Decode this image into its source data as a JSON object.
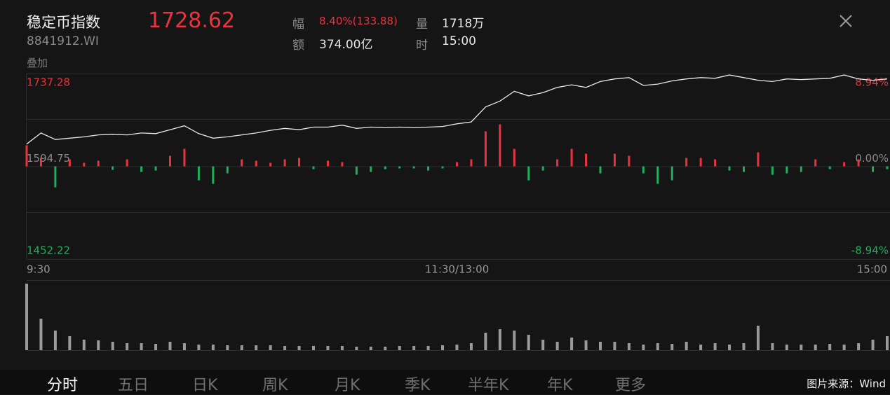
{
  "header": {
    "name": "稳定币指数",
    "code": "8841912.WI",
    "overlay": "叠加",
    "price": 1728.62,
    "stats": [
      {
        "label": "幅",
        "value": "8.40%(133.88)"
      },
      {
        "label": "量",
        "value": "1718万"
      },
      {
        "label": "额",
        "value": "374.00亿"
      },
      {
        "label": "时",
        "value": "15:00"
      }
    ]
  },
  "chart_data": {
    "type": "line",
    "categories": [
      "9:30",
      null,
      null,
      null,
      null,
      null,
      null,
      null,
      null,
      null,
      null,
      null,
      null,
      null,
      null,
      null,
      null,
      null,
      null,
      null,
      null,
      null,
      null,
      null,
      null,
      null,
      null,
      null,
      null,
      null,
      "11:30/13:00",
      null,
      null,
      null,
      null,
      null,
      null,
      null,
      null,
      null,
      null,
      null,
      null,
      null,
      null,
      null,
      null,
      null,
      null,
      null,
      null,
      null,
      null,
      null,
      null,
      null,
      null,
      null,
      null,
      null,
      "15:00"
    ],
    "series": [
      {
        "color": "#e8e8e8",
        "values": [
          1629,
          1646,
          1636,
          1638,
          1640,
          1643,
          1644,
          1643,
          1646,
          1645,
          1651,
          1657,
          1645,
          1638,
          1640,
          1643,
          1646,
          1650,
          1653,
          1651,
          1655,
          1655,
          1658,
          1653,
          1655,
          1654,
          1655,
          1654,
          1655,
          1656,
          1660,
          1663,
          1686,
          1695,
          1710,
          1703,
          1708,
          1716,
          1720,
          1716,
          1725,
          1729,
          1731,
          1719,
          1721,
          1726,
          1729,
          1731,
          1730,
          1735,
          1731,
          1727,
          1725,
          1729,
          1728,
          1729,
          1730,
          1735,
          1729,
          1727,
          1729
        ]
      }
    ],
    "ylim": [
      1452.22,
      1737.28
    ],
    "yticks": [
      1452.22,
      1594.75,
      1737.28
    ],
    "y2lim": [
      -8.94,
      8.94
    ],
    "y2ticks": [
      {
        "value": -8.94,
        "label": "-8.94%"
      },
      {
        "value": 0,
        "label": "0.00%"
      },
      {
        "value": 8.94,
        "label": "8.94%"
      }
    ],
    "up_color": "#e8343f",
    "down_color": "#1fae5c",
    "flat_color": "#8a8a8a",
    "flow": {
      "values": [
        30,
        12,
        -30,
        10,
        5,
        8,
        -5,
        10,
        -8,
        -6,
        15,
        25,
        -20,
        -25,
        -10,
        10,
        8,
        5,
        10,
        12,
        -4,
        8,
        6,
        -12,
        -8,
        -4,
        -3,
        -3,
        -6,
        -3,
        6,
        10,
        50,
        60,
        25,
        -20,
        -6,
        10,
        25,
        18,
        -10,
        18,
        15,
        -10,
        -25,
        -20,
        12,
        12,
        10,
        -6,
        -8,
        20,
        -12,
        -10,
        -8,
        10,
        -4,
        6,
        10,
        -8,
        -4
      ]
    },
    "volume": {
      "color": "#9a9a9a",
      "values": [
        95,
        45,
        28,
        20,
        15,
        14,
        12,
        10,
        10,
        9,
        12,
        10,
        8,
        8,
        7,
        7,
        7,
        7,
        6,
        6,
        6,
        6,
        6,
        5,
        5,
        5,
        6,
        6,
        6,
        7,
        8,
        10,
        25,
        30,
        28,
        22,
        15,
        12,
        18,
        14,
        12,
        12,
        10,
        8,
        10,
        9,
        12,
        8,
        10,
        8,
        10,
        35,
        10,
        8,
        8,
        8,
        9,
        8,
        10,
        15,
        20
      ]
    }
  },
  "tabs": [
    "分时",
    "五日",
    "日K",
    "周K",
    "月K",
    "季K",
    "半年K",
    "年K",
    "更多"
  ],
  "source": "图片来源：Wind"
}
